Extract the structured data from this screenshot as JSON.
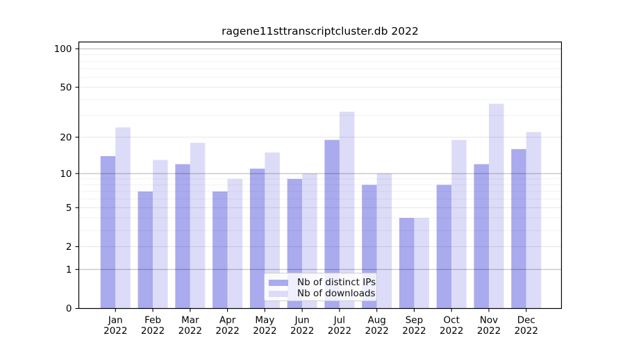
{
  "chart_data": {
    "type": "bar",
    "title": "ragene11sttranscriptcluster.db 2022",
    "categories": [
      "Jan",
      "Feb",
      "Mar",
      "Apr",
      "May",
      "Jun",
      "Jul",
      "Aug",
      "Sep",
      "Oct",
      "Nov",
      "Dec"
    ],
    "category_year": "2022",
    "series": [
      {
        "name": "Nb of distinct IPs",
        "color": "#aaaaee",
        "values": [
          14,
          7,
          12,
          7,
          11,
          9,
          19,
          8,
          4,
          8,
          12,
          16
        ]
      },
      {
        "name": "Nb of downloads",
        "color": "#dcdcf8",
        "values": [
          24,
          13,
          18,
          9,
          15,
          10,
          32,
          10,
          4,
          19,
          37,
          22
        ]
      }
    ],
    "xlabel": "",
    "ylabel": "",
    "yscale": "log10(1+value)",
    "ylim": [
      0,
      113
    ],
    "y_ticks": [
      0,
      1,
      2,
      5,
      10,
      20,
      50,
      100
    ],
    "y_minor_ticks": [
      3,
      4,
      6,
      7,
      8,
      9,
      30,
      40,
      60,
      70,
      80,
      90
    ],
    "grid": "horizontal",
    "legend_position": "lower-center-inside",
    "colors": {
      "grid_major": "rgba(0,0,0,0.30)",
      "grid_mid": "rgba(0,0,0,0.10)",
      "grid_minor": "rgba(0,0,0,0.055)",
      "axis": "#000000",
      "tick_label": "#000000"
    }
  }
}
